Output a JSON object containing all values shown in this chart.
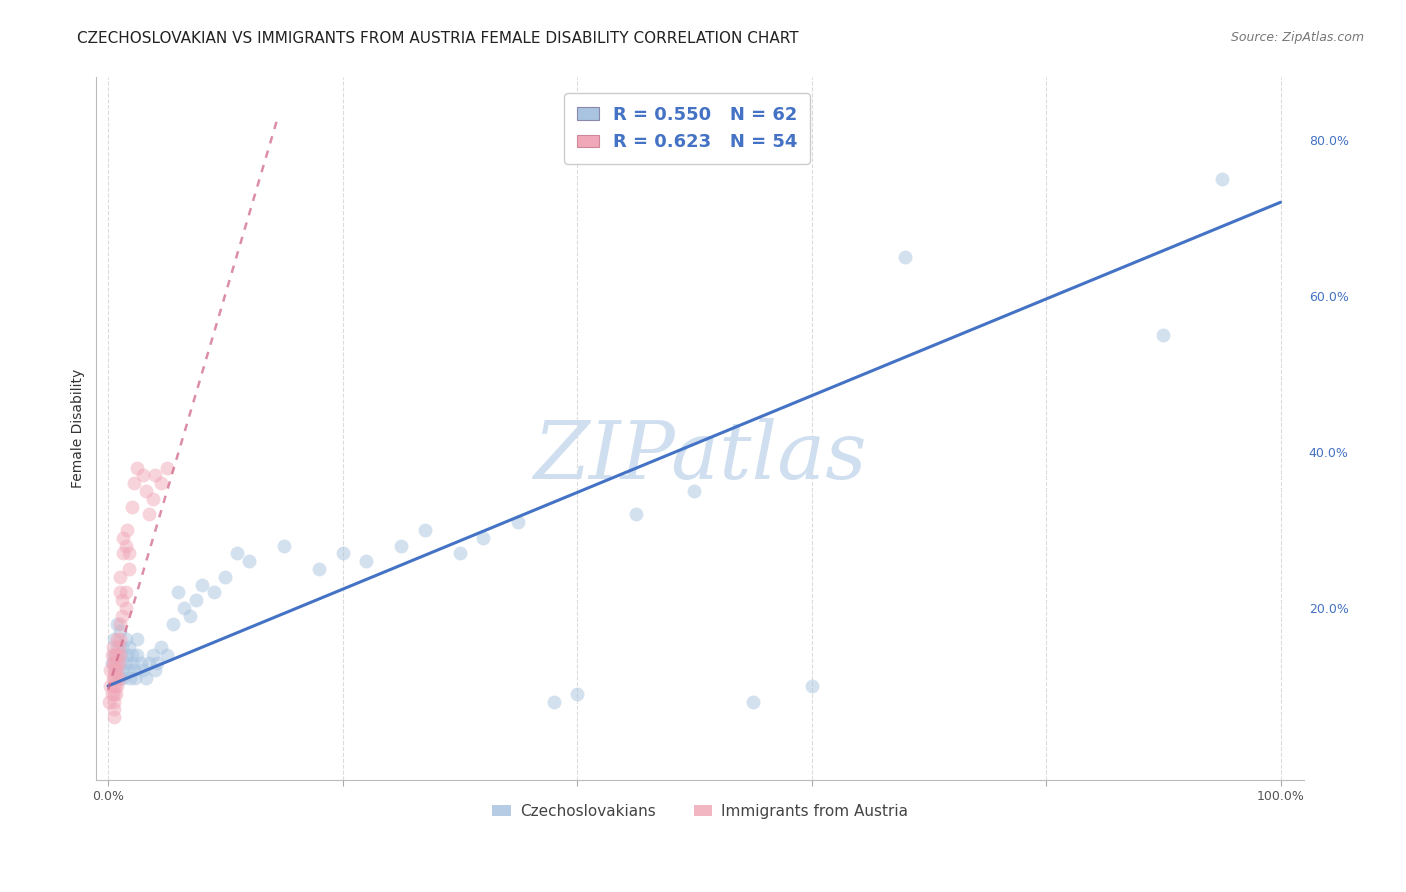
{
  "title": "CZECHOSLOVAKIAN VS IMMIGRANTS FROM AUSTRIA FEMALE DISABILITY CORRELATION CHART",
  "source": "Source: ZipAtlas.com",
  "ylabel": "Female Disability",
  "xlim_min": -0.01,
  "xlim_max": 1.02,
  "ylim_min": -0.02,
  "ylim_max": 0.88,
  "blue_color": "#a8c4e0",
  "pink_color": "#f0a8b8",
  "blue_line_color": "#4472c4",
  "pink_line_color": "#d06888",
  "legend_text_color": "#4472c4",
  "watermark_color": "#d0dff0",
  "background_color": "#ffffff",
  "grid_color": "#d8d8d8",
  "R_blue": 0.55,
  "N_blue": 62,
  "R_pink": 0.623,
  "N_pink": 54,
  "blue_line_x0": 0.0,
  "blue_line_y0": 0.1,
  "blue_line_x1": 1.0,
  "blue_line_y1": 0.72,
  "pink_line_x0": 0.0,
  "pink_line_y0": 0.095,
  "pink_line_x1": 0.145,
  "pink_line_y1": 0.83,
  "legend_items": [
    "Czechoslovakians",
    "Immigrants from Austria"
  ],
  "title_fontsize": 11,
  "source_fontsize": 9,
  "axis_label_fontsize": 10,
  "scatter_size": 100,
  "scatter_alpha": 0.5,
  "blue_scatter_x": [
    0.003,
    0.005,
    0.005,
    0.007,
    0.008,
    0.008,
    0.009,
    0.01,
    0.01,
    0.01,
    0.012,
    0.012,
    0.013,
    0.015,
    0.015,
    0.016,
    0.018,
    0.018,
    0.019,
    0.02,
    0.02,
    0.022,
    0.023,
    0.025,
    0.025,
    0.028,
    0.03,
    0.032,
    0.035,
    0.038,
    0.04,
    0.042,
    0.045,
    0.05,
    0.055,
    0.06,
    0.065,
    0.07,
    0.075,
    0.08,
    0.09,
    0.1,
    0.11,
    0.12,
    0.15,
    0.18,
    0.2,
    0.22,
    0.25,
    0.27,
    0.3,
    0.32,
    0.35,
    0.38,
    0.4,
    0.45,
    0.5,
    0.55,
    0.6,
    0.68,
    0.9,
    0.95
  ],
  "blue_scatter_y": [
    0.13,
    0.14,
    0.16,
    0.12,
    0.15,
    0.18,
    0.13,
    0.11,
    0.14,
    0.17,
    0.12,
    0.15,
    0.11,
    0.13,
    0.16,
    0.14,
    0.12,
    0.15,
    0.11,
    0.13,
    0.14,
    0.12,
    0.11,
    0.14,
    0.16,
    0.13,
    0.12,
    0.11,
    0.13,
    0.14,
    0.12,
    0.13,
    0.15,
    0.14,
    0.18,
    0.22,
    0.2,
    0.19,
    0.21,
    0.23,
    0.22,
    0.24,
    0.27,
    0.26,
    0.28,
    0.25,
    0.27,
    0.26,
    0.28,
    0.3,
    0.27,
    0.29,
    0.31,
    0.08,
    0.09,
    0.32,
    0.35,
    0.08,
    0.1,
    0.65,
    0.55,
    0.75
  ],
  "pink_scatter_x": [
    0.001,
    0.002,
    0.002,
    0.003,
    0.003,
    0.004,
    0.004,
    0.004,
    0.005,
    0.005,
    0.005,
    0.005,
    0.005,
    0.005,
    0.005,
    0.005,
    0.006,
    0.006,
    0.006,
    0.007,
    0.007,
    0.007,
    0.008,
    0.008,
    0.008,
    0.008,
    0.009,
    0.009,
    0.009,
    0.01,
    0.01,
    0.01,
    0.01,
    0.01,
    0.012,
    0.012,
    0.013,
    0.013,
    0.015,
    0.015,
    0.015,
    0.016,
    0.018,
    0.018,
    0.02,
    0.022,
    0.025,
    0.03,
    0.032,
    0.035,
    0.038,
    0.04,
    0.045,
    0.05
  ],
  "pink_scatter_y": [
    0.08,
    0.1,
    0.12,
    0.14,
    0.09,
    0.11,
    0.13,
    0.15,
    0.06,
    0.07,
    0.08,
    0.09,
    0.1,
    0.11,
    0.12,
    0.13,
    0.1,
    0.12,
    0.14,
    0.09,
    0.11,
    0.13,
    0.1,
    0.12,
    0.14,
    0.16,
    0.11,
    0.13,
    0.15,
    0.14,
    0.16,
    0.18,
    0.22,
    0.24,
    0.19,
    0.21,
    0.27,
    0.29,
    0.2,
    0.22,
    0.28,
    0.3,
    0.25,
    0.27,
    0.33,
    0.36,
    0.38,
    0.37,
    0.35,
    0.32,
    0.34,
    0.37,
    0.36,
    0.38
  ]
}
